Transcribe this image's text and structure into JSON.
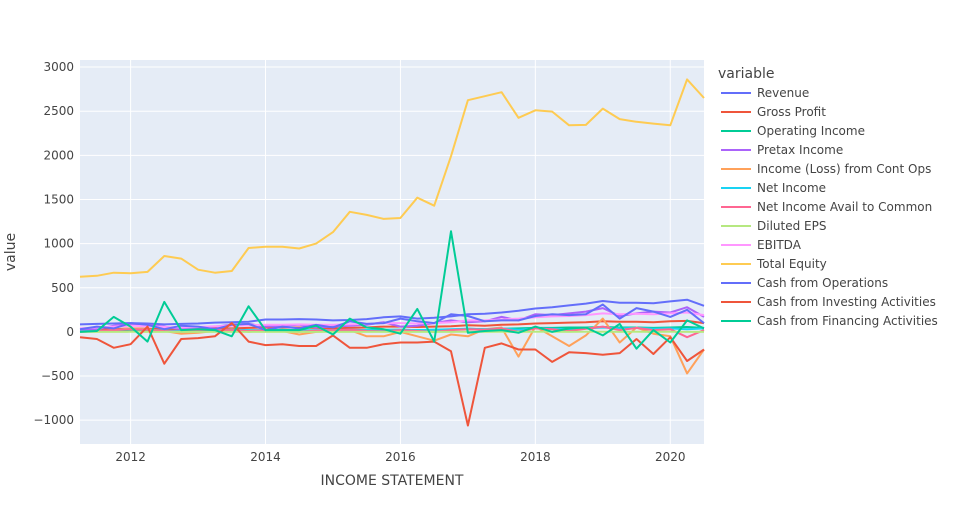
{
  "chart_data": {
    "type": "line",
    "xlabel": "INCOME STATEMENT",
    "ylabel": "value",
    "xlim": [
      2011.25,
      2020.5
    ],
    "ylim": [
      -1270,
      3080
    ],
    "x_ticks": [
      2012,
      2014,
      2016,
      2018,
      2020
    ],
    "y_ticks": [
      -1000,
      -500,
      0,
      500,
      1000,
      1500,
      2000,
      2500,
      3000
    ],
    "y_tick_labels": [
      "−1000",
      "−500",
      "0",
      "500",
      "1000",
      "1500",
      "2000",
      "2500",
      "3000"
    ],
    "grid": true,
    "legend_title": "variable",
    "legend_position": "right",
    "x": [
      2011.25,
      2011.5,
      2011.75,
      2012.0,
      2012.25,
      2012.5,
      2012.75,
      2013.0,
      2013.25,
      2013.5,
      2013.75,
      2014.0,
      2014.25,
      2014.5,
      2014.75,
      2015.0,
      2015.25,
      2015.5,
      2015.75,
      2016.0,
      2016.25,
      2016.5,
      2016.75,
      2017.0,
      2017.25,
      2017.5,
      2017.75,
      2018.0,
      2018.25,
      2018.5,
      2018.75,
      2019.0,
      2019.25,
      2019.5,
      2019.75,
      2020.0,
      2020.25,
      2020.5
    ],
    "series": [
      {
        "name": "Revenue",
        "color": "#636efa",
        "values": [
          85,
          90,
          95,
          100,
          95,
          85,
          90,
          95,
          105,
          110,
          115,
          140,
          140,
          145,
          140,
          130,
          135,
          145,
          165,
          175,
          150,
          160,
          175,
          200,
          205,
          220,
          240,
          265,
          280,
          300,
          320,
          350,
          330,
          330,
          325,
          345,
          365,
          295
        ]
      },
      {
        "name": "Gross Profit",
        "color": "#EF553B",
        "values": [
          30,
          35,
          30,
          40,
          35,
          30,
          30,
          35,
          40,
          40,
          45,
          50,
          50,
          50,
          45,
          40,
          45,
          50,
          60,
          60,
          55,
          60,
          65,
          75,
          70,
          80,
          85,
          95,
          100,
          105,
          110,
          120,
          115,
          115,
          110,
          120,
          125,
          100
        ]
      },
      {
        "name": "Operating Income",
        "color": "#00cc96",
        "values": [
          10,
          12,
          10,
          15,
          12,
          10,
          8,
          10,
          12,
          15,
          15,
          20,
          20,
          20,
          15,
          12,
          15,
          18,
          25,
          25,
          20,
          22,
          25,
          35,
          30,
          35,
          40,
          45,
          45,
          50,
          50,
          55,
          50,
          50,
          45,
          50,
          55,
          45
        ]
      },
      {
        "name": "Pretax Income",
        "color": "#ab63fa",
        "values": [
          20,
          30,
          70,
          90,
          80,
          60,
          30,
          50,
          60,
          80,
          90,
          60,
          70,
          80,
          50,
          60,
          70,
          80,
          110,
          60,
          70,
          100,
          130,
          110,
          120,
          170,
          130,
          200,
          190,
          210,
          230,
          270,
          180,
          210,
          230,
          220,
          280,
          170
        ]
      },
      {
        "name": "Income (Loss) from Cont Ops",
        "color": "#FFA15A",
        "values": [
          0,
          10,
          20,
          40,
          30,
          10,
          -20,
          -10,
          10,
          30,
          0,
          20,
          10,
          -30,
          0,
          10,
          20,
          -50,
          -50,
          0,
          -50,
          -100,
          -30,
          -50,
          30,
          50,
          -280,
          60,
          -50,
          -160,
          -40,
          150,
          -120,
          50,
          -20,
          -50,
          -470,
          -200
        ]
      },
      {
        "name": "Net Income",
        "color": "#19d3f3",
        "values": [
          5,
          10,
          20,
          30,
          25,
          15,
          10,
          15,
          20,
          25,
          20,
          20,
          25,
          15,
          20,
          20,
          25,
          20,
          20,
          25,
          20,
          25,
          30,
          35,
          30,
          40,
          25,
          40,
          35,
          30,
          40,
          50,
          40,
          45,
          35,
          40,
          30,
          40
        ]
      },
      {
        "name": "Net Income Avail to Common",
        "color": "#FF6692",
        "values": [
          0,
          10,
          20,
          30,
          25,
          10,
          0,
          10,
          20,
          20,
          10,
          20,
          15,
          0,
          15,
          20,
          25,
          10,
          5,
          20,
          10,
          0,
          20,
          30,
          25,
          40,
          0,
          40,
          30,
          10,
          35,
          60,
          20,
          45,
          20,
          30,
          -60,
          20
        ]
      },
      {
        "name": "Diluted EPS",
        "color": "#B6E880",
        "values": [
          0.2,
          0.3,
          0.4,
          0.5,
          0.4,
          0.3,
          0.2,
          0.3,
          0.4,
          0.4,
          0.3,
          0.4,
          0.3,
          0.2,
          0.3,
          0.4,
          0.4,
          0.3,
          0.2,
          0.4,
          0.3,
          0.2,
          0.4,
          0.5,
          0.4,
          0.6,
          0.2,
          0.6,
          0.5,
          0.3,
          0.5,
          0.7,
          0.4,
          0.6,
          0.4,
          0.5,
          -0.5,
          0.4
        ]
      },
      {
        "name": "EBITDA",
        "color": "#FF97FF",
        "values": [
          40,
          50,
          60,
          70,
          65,
          55,
          50,
          55,
          65,
          70,
          75,
          80,
          80,
          85,
          80,
          80,
          85,
          90,
          100,
          100,
          95,
          100,
          110,
          130,
          130,
          140,
          150,
          165,
          175,
          180,
          190,
          210,
          200,
          205,
          200,
          210,
          220,
          190
        ]
      },
      {
        "name": "Total Equity",
        "color": "#FECB52",
        "values": [
          625,
          635,
          670,
          665,
          680,
          860,
          830,
          705,
          670,
          690,
          950,
          965,
          965,
          945,
          1000,
          1130,
          1360,
          1325,
          1280,
          1290,
          1520,
          1430,
          1990,
          2625,
          2670,
          2715,
          2425,
          2510,
          2495,
          2340,
          2345,
          2530,
          2410,
          2380,
          2360,
          2340,
          2860,
          2650
        ]
      },
      {
        "name": "Cash from Operations",
        "color": "#636efa",
        "values": [
          30,
          60,
          40,
          100,
          80,
          30,
          70,
          60,
          30,
          80,
          90,
          20,
          60,
          40,
          80,
          50,
          120,
          90,
          100,
          150,
          120,
          100,
          200,
          180,
          120,
          130,
          130,
          180,
          200,
          190,
          200,
          310,
          150,
          270,
          230,
          170,
          250,
          100
        ]
      },
      {
        "name": "Cash from Investing Activities",
        "color": "#EF553B",
        "values": [
          -60,
          -80,
          -180,
          -140,
          60,
          -360,
          -80,
          -70,
          -50,
          100,
          -110,
          -150,
          -140,
          -160,
          -160,
          -40,
          -180,
          -180,
          -140,
          -120,
          -120,
          -110,
          -220,
          -1060,
          -180,
          -130,
          -200,
          -200,
          -340,
          -230,
          -240,
          -260,
          -240,
          -80,
          -250,
          -60,
          -330,
          -200
        ]
      },
      {
        "name": "Cash from Financing Activities",
        "color": "#00cc96",
        "values": [
          0,
          10,
          170,
          60,
          -110,
          340,
          20,
          30,
          20,
          -50,
          290,
          20,
          20,
          20,
          70,
          -30,
          150,
          50,
          30,
          -20,
          260,
          -110,
          1140,
          -10,
          10,
          20,
          -10,
          60,
          0,
          40,
          50,
          -40,
          90,
          -190,
          20,
          -120,
          130,
          40
        ]
      }
    ]
  }
}
